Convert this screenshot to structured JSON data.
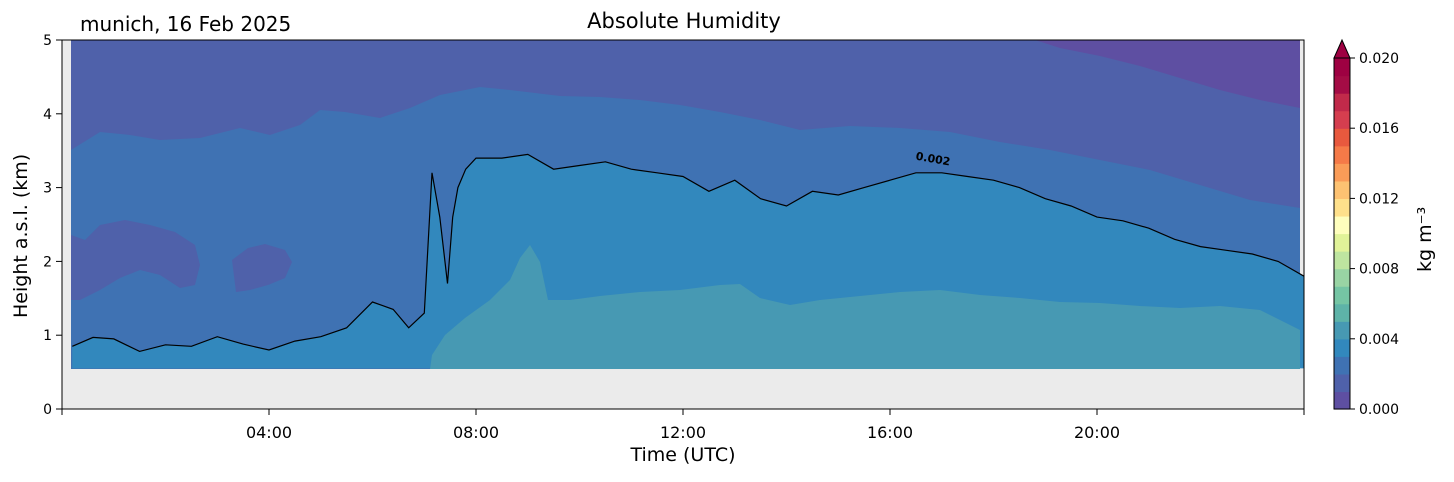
{
  "header": {
    "site_date": "munich, 16 Feb 2025"
  },
  "chart_data": {
    "type": "heatmap",
    "title": "Absolute Humidity",
    "xlabel": "Time (UTC)",
    "ylabel": "Height a.s.l. (km)",
    "xlim_hours": [
      0,
      24
    ],
    "ylim": [
      0,
      5
    ],
    "x_ticks": [
      "04:00",
      "08:00",
      "12:00",
      "16:00",
      "20:00"
    ],
    "x_tick_hours": [
      4,
      8,
      12,
      16,
      20
    ],
    "y_ticks": [
      "0",
      "1",
      "2",
      "3",
      "4",
      "5"
    ],
    "y_tick_values": [
      0,
      1,
      2,
      3,
      4,
      5
    ],
    "data_bottom_km": 0.55,
    "colorbar": {
      "label": "kg m⁻³",
      "min": 0.0,
      "max": 0.02,
      "extend": "max",
      "cmap": "Spectral_r",
      "ticks": [
        "0.000",
        "0.004",
        "0.008",
        "0.012",
        "0.016",
        "0.020"
      ],
      "tick_values": [
        0,
        0.004,
        0.008,
        0.012,
        0.016,
        0.02
      ],
      "colors": [
        "#5e4fa2",
        "#4f61aa",
        "#3f72b3",
        "#3288bd",
        "#4799b3",
        "#5eb3a8",
        "#75c5a4",
        "#99d4a4",
        "#bee5a0",
        "#e1f399",
        "#fefebd",
        "#fee08b",
        "#fdc272",
        "#fa9c58",
        "#f57a48",
        "#e8593e",
        "#d53e4f",
        "#c12a4a",
        "#a40c45",
        "#9e0142"
      ]
    },
    "contour_label": "0.002",
    "contour_level": 0.002,
    "contour_0002_km": {
      "hours": [
        0.2,
        0.6,
        1.0,
        1.5,
        2.0,
        2.5,
        3.0,
        3.5,
        4.0,
        4.5,
        5.0,
        5.5,
        6.0,
        6.4,
        6.7,
        7.0,
        7.15,
        7.3,
        7.45,
        7.55,
        7.65,
        7.8,
        8.0,
        8.5,
        9.0,
        9.5,
        10.0,
        10.5,
        11.0,
        11.5,
        12.0,
        12.5,
        13.0,
        13.5,
        14.0,
        14.5,
        15.0,
        15.5,
        16.0,
        16.5,
        17.0,
        17.5,
        18.0,
        18.5,
        19.0,
        19.5,
        20.0,
        20.5,
        21.0,
        21.5,
        22.0,
        22.5,
        23.0,
        23.5,
        24.0
      ],
      "km": [
        0.85,
        0.97,
        0.95,
        0.78,
        0.87,
        0.85,
        0.98,
        0.88,
        0.8,
        0.92,
        0.98,
        1.1,
        1.45,
        1.35,
        1.1,
        1.3,
        3.2,
        2.6,
        1.7,
        2.6,
        3.0,
        3.25,
        3.4,
        3.4,
        3.45,
        3.25,
        3.3,
        3.35,
        3.25,
        3.2,
        3.15,
        2.95,
        3.1,
        2.85,
        2.75,
        2.95,
        2.9,
        3.0,
        3.1,
        3.2,
        3.2,
        3.15,
        3.1,
        3.0,
        2.85,
        2.75,
        2.6,
        2.55,
        2.45,
        2.3,
        2.2,
        2.15,
        2.1,
        2.0,
        1.8
      ]
    },
    "fill_levels": [
      {
        "level_kg_m3": 0.0005,
        "color": "#5e4fa2"
      },
      {
        "level_kg_m3": 0.001,
        "color": "#4f61aa"
      },
      {
        "level_kg_m3": 0.0015,
        "color": "#3f72b3"
      },
      {
        "level_kg_m3": 0.002,
        "color": "#3288bd"
      },
      {
        "level_kg_m3": 0.003,
        "color": "#4799b3"
      }
    ]
  }
}
